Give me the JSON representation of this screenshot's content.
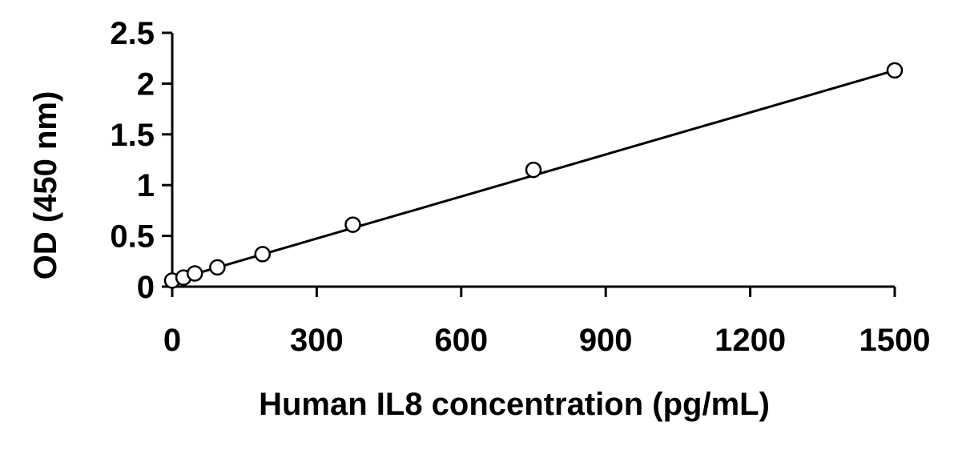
{
  "chart_data": {
    "type": "scatter",
    "title": "",
    "xlabel": "Human IL8 concentration (pg/mL)",
    "ylabel": "OD (450 nm)",
    "xlim": [
      0,
      1500
    ],
    "ylim": [
      0,
      2.5
    ],
    "x_ticks": [
      "0",
      "300",
      "600",
      "900",
      "1200",
      "1500"
    ],
    "y_ticks": [
      "0",
      "0.5",
      "1",
      "1.5",
      "2",
      "2.5"
    ],
    "grid": false,
    "legend": "none",
    "series": [
      {
        "marker": "open-circle",
        "color": "#000000",
        "x": [
          0,
          23.4,
          46.9,
          93.8,
          187.5,
          375,
          750,
          1500
        ],
        "y": [
          0.06,
          0.09,
          0.13,
          0.19,
          0.32,
          0.61,
          1.15,
          2.13
        ]
      }
    ],
    "trendline": {
      "type": "linear",
      "color": "#000000",
      "x": [
        0,
        1500
      ],
      "y": [
        0.06,
        2.13
      ]
    }
  }
}
